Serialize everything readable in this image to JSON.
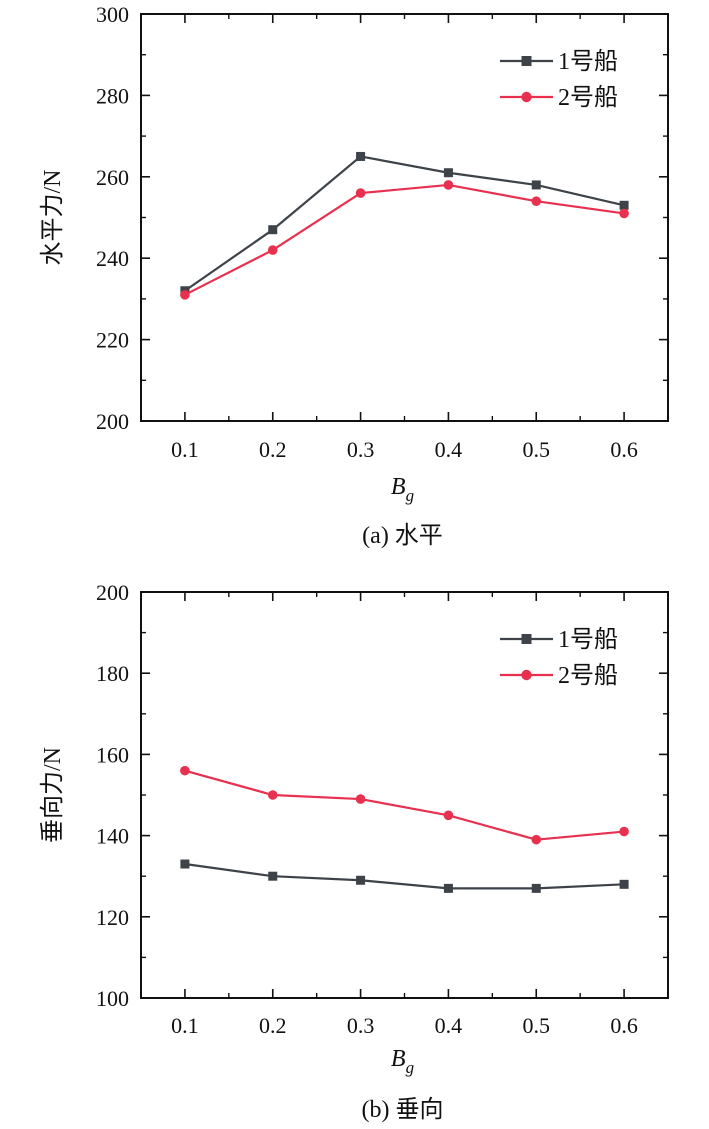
{
  "chart_data": [
    {
      "type": "line",
      "caption": "(a) 水平",
      "x": [
        0.1,
        0.2,
        0.3,
        0.4,
        0.5,
        0.6
      ],
      "x_tick_labels": [
        "0.1",
        "0.2",
        "0.3",
        "0.4",
        "0.5",
        "0.6"
      ],
      "xlabel_main": "B",
      "xlabel_sub": "g",
      "ylabel": "水平力/N",
      "ylim": [
        200,
        300
      ],
      "y_ticks": [
        200,
        220,
        240,
        260,
        280,
        300
      ],
      "y_tick_labels": [
        "200",
        "220",
        "240",
        "260",
        "280",
        "300"
      ],
      "legend_position": "top-right",
      "series": [
        {
          "name": "1号船",
          "marker": "square",
          "color": "#3d4349",
          "values": [
            232,
            247,
            265,
            261,
            258,
            253
          ]
        },
        {
          "name": "2号船",
          "marker": "circle",
          "color": "#e8304f",
          "values": [
            231,
            242,
            256,
            258,
            254,
            251
          ]
        }
      ]
    },
    {
      "type": "line",
      "caption": "(b) 垂向",
      "x": [
        0.1,
        0.2,
        0.3,
        0.4,
        0.5,
        0.6
      ],
      "x_tick_labels": [
        "0.1",
        "0.2",
        "0.3",
        "0.4",
        "0.5",
        "0.6"
      ],
      "xlabel_main": "B",
      "xlabel_sub": "g",
      "ylabel": "垂向力/N",
      "ylim": [
        100,
        200
      ],
      "y_ticks": [
        100,
        120,
        140,
        160,
        180,
        200
      ],
      "y_tick_labels": [
        "100",
        "120",
        "140",
        "160",
        "180",
        "200"
      ],
      "legend_position": "top-right",
      "series": [
        {
          "name": "1号船",
          "marker": "square",
          "color": "#3d4349",
          "values": [
            133,
            130,
            129,
            127,
            127,
            128
          ]
        },
        {
          "name": "2号船",
          "marker": "circle",
          "color": "#e8304f",
          "values": [
            156,
            150,
            149,
            145,
            139,
            141
          ]
        }
      ]
    }
  ]
}
